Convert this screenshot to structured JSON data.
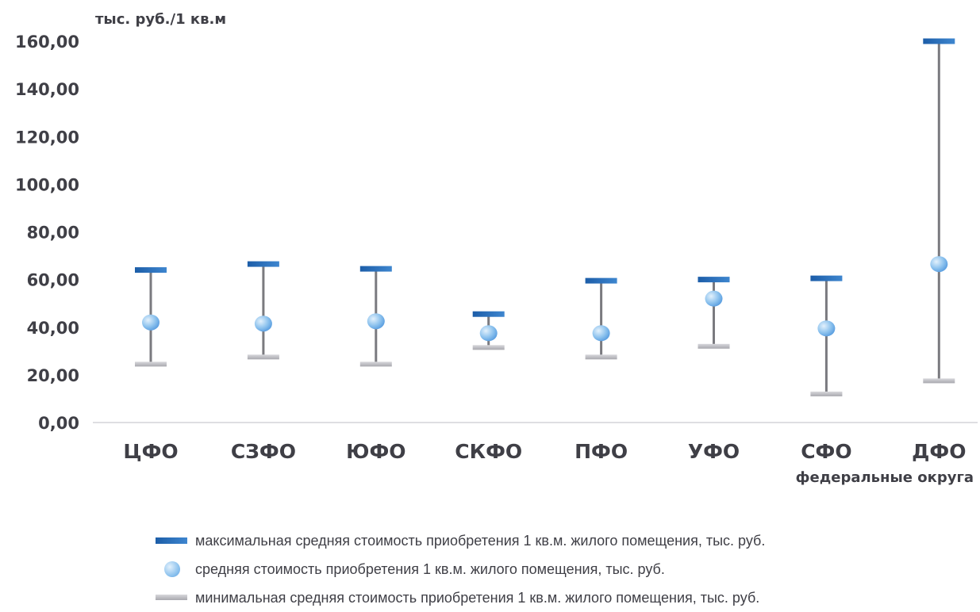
{
  "chart_data": {
    "type": "range",
    "ylabel": "тыс. руб./1 кв.м",
    "xlabel": "федеральные округа",
    "ylim": [
      0,
      160
    ],
    "yticks": [
      "0,00",
      "20,00",
      "40,00",
      "60,00",
      "80,00",
      "100,00",
      "120,00",
      "140,00",
      "160,00"
    ],
    "categories": [
      "ЦФО",
      "СЗФО",
      "ЮФО",
      "СКФО",
      "ПФО",
      "УФО",
      "СФО",
      "ДФО"
    ],
    "series": [
      {
        "name": "максимальная средняя стоимость приобретения 1 кв.м. жилого помещения, тыс. руб.",
        "values": [
          64,
          66.5,
          64.5,
          45.5,
          59.5,
          60,
          60.5,
          160
        ]
      },
      {
        "name": "средняя стоимость приобретения 1 кв.м. жилого помещения, тыс. руб.",
        "values": [
          42,
          41.5,
          42.5,
          37.5,
          37.5,
          52,
          39.5,
          66.5
        ]
      },
      {
        "name": "минимальная средняя  стоимость приобретения 1 кв.м. жилого помещения, тыс. руб.",
        "values": [
          24.5,
          27.5,
          24.5,
          31.5,
          27.5,
          32,
          12,
          17.5
        ]
      }
    ],
    "grid": false,
    "legend_position": "bottom",
    "colors": {
      "max": "#2a6fbe",
      "mean": "#8ec3ee",
      "min": "#b5b5ba",
      "whisker": "#7a7a7f",
      "text": "#3f3f46"
    }
  }
}
